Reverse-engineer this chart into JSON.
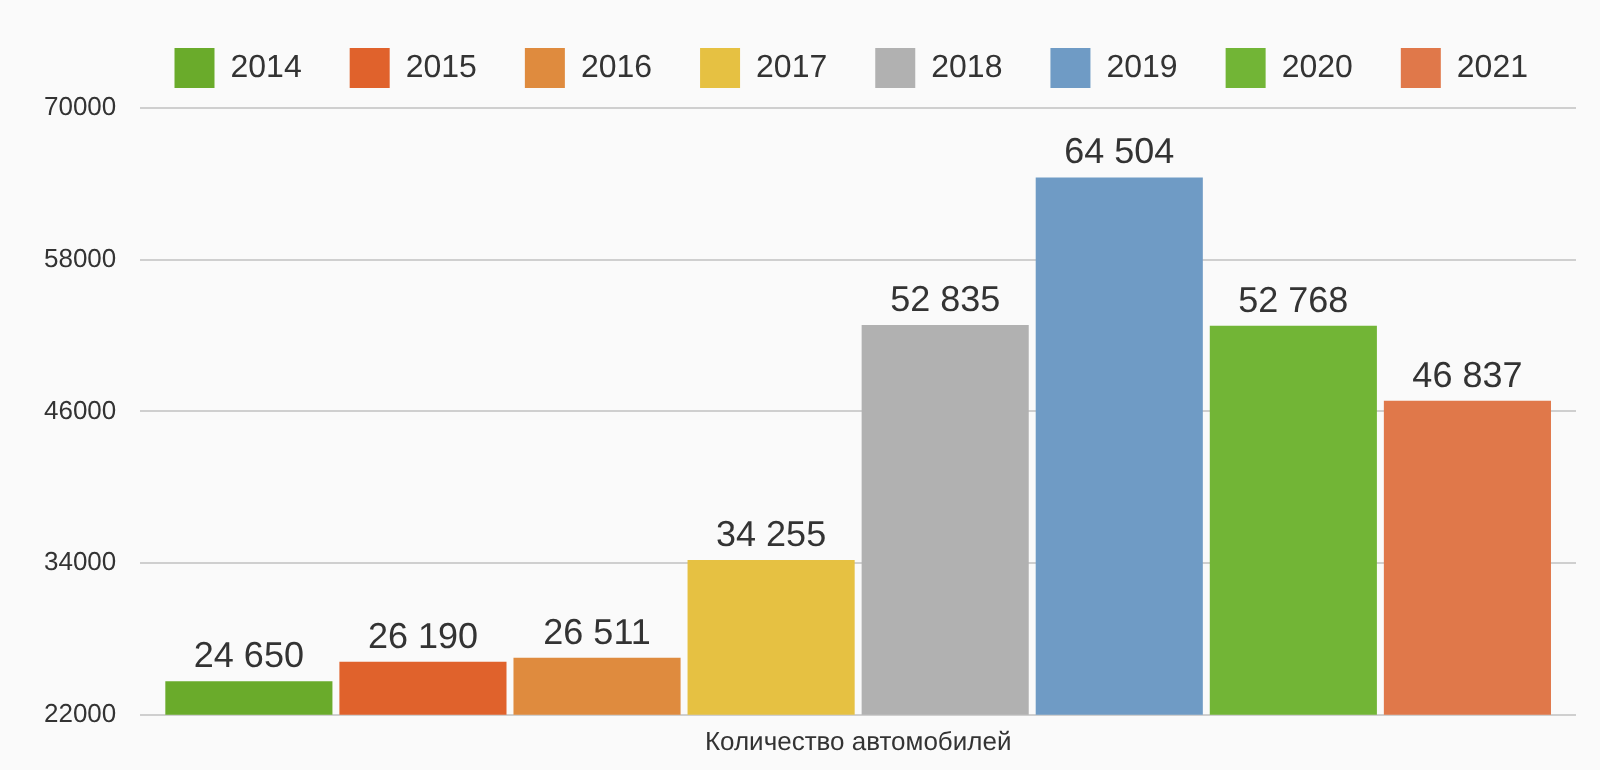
{
  "chart_data": {
    "type": "bar",
    "categories": [
      "Количество автомобилей"
    ],
    "series": [
      {
        "name": "2014",
        "color": "#6aab2b",
        "values": [
          24650
        ],
        "value_labels": [
          "24 650"
        ]
      },
      {
        "name": "2015",
        "color": "#e0622c",
        "values": [
          26190
        ],
        "value_labels": [
          "26 190"
        ]
      },
      {
        "name": "2016",
        "color": "#df8b3e",
        "values": [
          26511
        ],
        "value_labels": [
          "26 511"
        ]
      },
      {
        "name": "2017",
        "color": "#e6c142",
        "values": [
          34255
        ],
        "value_labels": [
          "34 255"
        ]
      },
      {
        "name": "2018",
        "color": "#b1b1b1",
        "values": [
          52835
        ],
        "value_labels": [
          "52 835"
        ]
      },
      {
        "name": "2019",
        "color": "#6f9bc5",
        "values": [
          64504
        ],
        "value_labels": [
          "64 504"
        ]
      },
      {
        "name": "2020",
        "color": "#72b536",
        "values": [
          52768
        ],
        "value_labels": [
          "52 768"
        ]
      },
      {
        "name": "2021",
        "color": "#e0784a",
        "values": [
          46837
        ],
        "value_labels": [
          "46 837"
        ]
      }
    ],
    "ylim": [
      22000,
      70000
    ],
    "yticks": [
      22000,
      34000,
      46000,
      58000,
      70000
    ],
    "grid": "y",
    "legend": "top right"
  }
}
